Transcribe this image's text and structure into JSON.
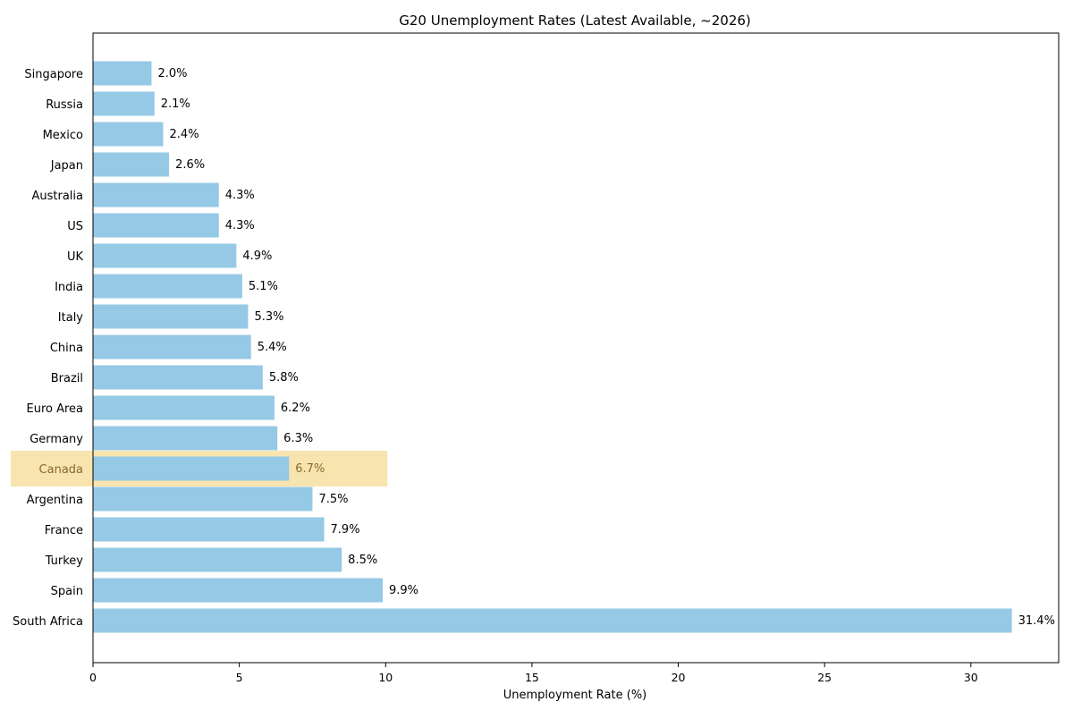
{
  "chart_data": {
    "type": "bar",
    "orientation": "horizontal",
    "title": "G20 Unemployment Rates (Latest Available, ~2026)",
    "xlabel": "Unemployment Rate (%)",
    "ylabel": "",
    "xlim": [
      0,
      33
    ],
    "xticks": [
      0,
      5,
      10,
      15,
      20,
      25,
      30
    ],
    "grid": false,
    "bar_color": "#95c9e5",
    "highlight_color": "#f3d27a",
    "highlight_label_color": "#8a6a2a",
    "highlight_category": "Canada",
    "categories": [
      "Singapore",
      "Russia",
      "Mexico",
      "Japan",
      "Australia",
      "US",
      "UK",
      "India",
      "Italy",
      "China",
      "Brazil",
      "Euro Area",
      "Germany",
      "Canada",
      "Argentina",
      "France",
      "Turkey",
      "Spain",
      "South Africa"
    ],
    "values": [
      2.0,
      2.1,
      2.4,
      2.6,
      4.3,
      4.3,
      4.9,
      5.1,
      5.3,
      5.4,
      5.8,
      6.2,
      6.3,
      6.7,
      7.5,
      7.9,
      8.5,
      9.9,
      31.4
    ],
    "value_labels": [
      "2.0%",
      "2.1%",
      "2.4%",
      "2.6%",
      "4.3%",
      "4.3%",
      "4.9%",
      "5.1%",
      "5.3%",
      "5.4%",
      "5.8%",
      "6.2%",
      "6.3%",
      "6.7%",
      "7.5%",
      "7.9%",
      "8.5%",
      "9.9%",
      "31.4%"
    ]
  }
}
